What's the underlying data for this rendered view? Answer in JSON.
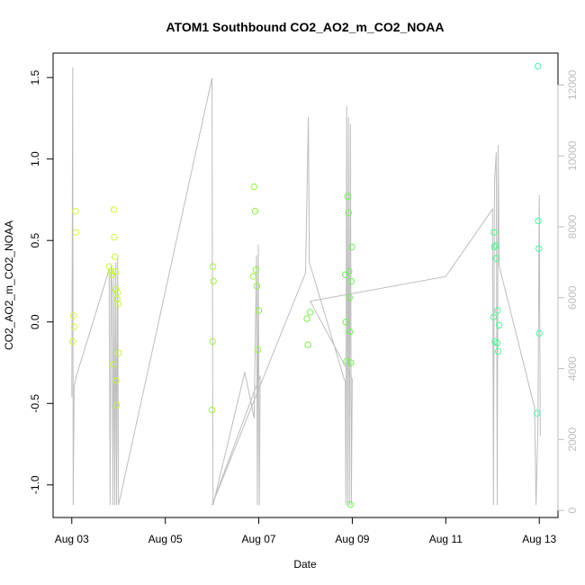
{
  "chart_data": {
    "type": "scatter",
    "title": "ATOM1 Southbound CO2_AO2_m_CO2_NOAA",
    "xlabel": "Date",
    "ylabel": "CO2_AO2_m_CO2_NOAA",
    "x_ticks": [
      {
        "value": 0,
        "label": "Aug 03"
      },
      {
        "value": 2,
        "label": "Aug 05"
      },
      {
        "value": 4,
        "label": "Aug 07"
      },
      {
        "value": 6,
        "label": "Aug 09"
      },
      {
        "value": 8,
        "label": "Aug 11"
      },
      {
        "value": 10,
        "label": "Aug 13"
      }
    ],
    "xlim": [
      -0.4,
      10.4
    ],
    "ylim": [
      -1.2,
      1.65
    ],
    "y_ticks": [
      "-1.0",
      "-0.5",
      "0.0",
      "0.5",
      "1.0",
      "1.5"
    ],
    "y2lim": [
      -200,
      12900
    ],
    "y2_ticks": [
      "0",
      "2000",
      "4000",
      "6000",
      "8000",
      "10000",
      "12000"
    ],
    "grid": false,
    "legend": "none",
    "colors": {
      "line": "#bdbdbd",
      "point_gradient": [
        "#d4f73c",
        "#9cf23d",
        "#62f25c",
        "#48f7a7"
      ],
      "axis": "#000000"
    },
    "points": [
      {
        "x": 0.02,
        "y": -0.12
      },
      {
        "x": 0.03,
        "y": 0.04
      },
      {
        "x": 0.05,
        "y": -0.03
      },
      {
        "x": 0.08,
        "y": 0.68
      },
      {
        "x": 0.09,
        "y": 0.55
      },
      {
        "x": 0.8,
        "y": 0.34
      },
      {
        "x": 0.84,
        "y": 0.31
      },
      {
        "x": 0.86,
        "y": 0.29
      },
      {
        "x": 0.88,
        "y": -0.26
      },
      {
        "x": 0.9,
        "y": 0.69
      },
      {
        "x": 0.91,
        "y": 0.52
      },
      {
        "x": 0.92,
        "y": 0.4
      },
      {
        "x": 0.93,
        "y": 0.31
      },
      {
        "x": 0.94,
        "y": 0.2
      },
      {
        "x": 0.95,
        "y": -0.36
      },
      {
        "x": 0.96,
        "y": -0.51
      },
      {
        "x": 0.97,
        "y": 0.14
      },
      {
        "x": 0.98,
        "y": 0.18
      },
      {
        "x": 0.99,
        "y": 0.11
      },
      {
        "x": 1.0,
        "y": -0.19
      },
      {
        "x": 3.0,
        "y": -0.54
      },
      {
        "x": 3.01,
        "y": -0.12
      },
      {
        "x": 3.02,
        "y": 0.34
      },
      {
        "x": 3.03,
        "y": 0.25
      },
      {
        "x": 3.88,
        "y": 0.28
      },
      {
        "x": 3.9,
        "y": 0.83
      },
      {
        "x": 3.92,
        "y": 0.68
      },
      {
        "x": 3.94,
        "y": 0.32
      },
      {
        "x": 3.96,
        "y": 0.22
      },
      {
        "x": 3.98,
        "y": -0.17
      },
      {
        "x": 4.0,
        "y": 0.07
      },
      {
        "x": 5.03,
        "y": 0.02
      },
      {
        "x": 5.05,
        "y": -0.14
      },
      {
        "x": 5.1,
        "y": 0.06
      },
      {
        "x": 5.85,
        "y": 0.29
      },
      {
        "x": 5.86,
        "y": 0.0
      },
      {
        "x": 5.88,
        "y": -0.24
      },
      {
        "x": 5.9,
        "y": 0.77
      },
      {
        "x": 5.92,
        "y": 0.67
      },
      {
        "x": 5.93,
        "y": 0.31
      },
      {
        "x": 5.94,
        "y": 0.15
      },
      {
        "x": 5.95,
        "y": -0.06
      },
      {
        "x": 5.96,
        "y": -1.12
      },
      {
        "x": 5.97,
        "y": -0.25
      },
      {
        "x": 5.98,
        "y": 0.25
      },
      {
        "x": 5.99,
        "y": 0.46
      },
      {
        "x": 9.02,
        "y": 0.03
      },
      {
        "x": 9.03,
        "y": 0.55
      },
      {
        "x": 9.04,
        "y": 0.46
      },
      {
        "x": 9.05,
        "y": -0.12
      },
      {
        "x": 9.07,
        "y": 0.47
      },
      {
        "x": 9.08,
        "y": 0.39
      },
      {
        "x": 9.1,
        "y": -0.13
      },
      {
        "x": 9.11,
        "y": 0.07
      },
      {
        "x": 9.12,
        "y": -0.18
      },
      {
        "x": 9.14,
        "y": -0.02
      },
      {
        "x": 9.95,
        "y": -0.56
      },
      {
        "x": 9.97,
        "y": 1.57
      },
      {
        "x": 9.98,
        "y": 0.62
      },
      {
        "x": 9.99,
        "y": 0.45
      },
      {
        "x": 10.0,
        "y": -0.07
      }
    ],
    "line_series_y2": [
      [
        0.0,
        3200
      ],
      [
        0.02,
        12500
      ],
      [
        0.03,
        150
      ],
      [
        0.05,
        3500
      ],
      [
        0.1,
        3800
      ],
      [
        0.8,
        6800
      ],
      [
        0.82,
        150
      ],
      [
        0.84,
        6900
      ],
      [
        0.86,
        6400
      ],
      [
        0.88,
        150
      ],
      [
        0.9,
        6800
      ],
      [
        0.92,
        150
      ],
      [
        0.94,
        7000
      ],
      [
        0.96,
        150
      ],
      [
        0.98,
        7200
      ],
      [
        1.0,
        150
      ],
      [
        3.0,
        12200
      ],
      [
        3.01,
        6100
      ],
      [
        3.02,
        150
      ],
      [
        3.7,
        3900
      ],
      [
        3.9,
        2600
      ],
      [
        3.95,
        7200
      ],
      [
        3.97,
        150
      ],
      [
        3.99,
        7500
      ],
      [
        4.01,
        150
      ],
      [
        4.03,
        3800
      ],
      [
        3.0,
        150
      ],
      [
        5.0,
        6700
      ],
      [
        5.06,
        11100
      ],
      [
        5.08,
        7000
      ],
      [
        5.85,
        3600
      ],
      [
        5.86,
        150
      ],
      [
        5.88,
        11400
      ],
      [
        5.9,
        150
      ],
      [
        5.92,
        11100
      ],
      [
        5.94,
        150
      ],
      [
        5.96,
        10900
      ],
      [
        5.98,
        150
      ],
      [
        6.0,
        3700
      ],
      [
        5.1,
        5900
      ],
      [
        8.0,
        6600
      ],
      [
        9.0,
        8500
      ],
      [
        9.02,
        150
      ],
      [
        9.04,
        9200
      ],
      [
        9.08,
        10100
      ],
      [
        9.1,
        150
      ],
      [
        9.12,
        10300
      ],
      [
        9.14,
        6900
      ],
      [
        9.9,
        2900
      ],
      [
        9.93,
        150
      ],
      [
        9.97,
        2400
      ],
      [
        10.0,
        8900
      ],
      [
        10.02,
        2100
      ]
    ]
  }
}
